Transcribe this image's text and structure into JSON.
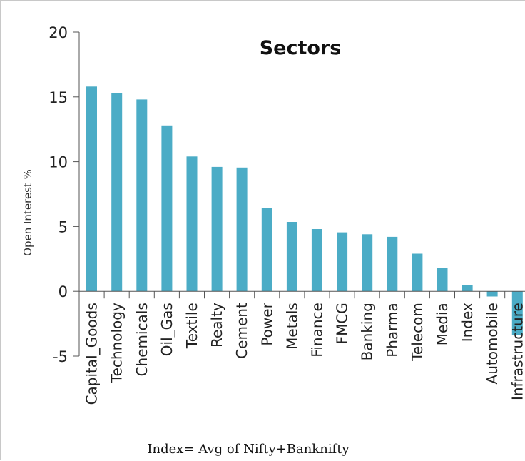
{
  "chart_data": {
    "type": "bar",
    "title": "Sectors",
    "xlabel": "",
    "ylabel": "Open Interest %",
    "ylim": [
      -5,
      20
    ],
    "yticks": [
      -5,
      0,
      5,
      10,
      15,
      20
    ],
    "grid": false,
    "legend": "none",
    "bar_color": "#4BACC6",
    "categories": [
      "Capital_Goods",
      "Technology",
      "Chemicals",
      "Oil_Gas",
      "Textile",
      "Realty",
      "Cement",
      "Power",
      "Metals",
      "Finance",
      "FMCG",
      "Banking",
      "Pharma",
      "Telecom",
      "Media",
      "Index",
      "Automobile",
      "Infrastructure"
    ],
    "values": [
      15.8,
      15.3,
      14.8,
      12.8,
      10.4,
      9.6,
      9.55,
      6.4,
      5.35,
      4.8,
      4.55,
      4.4,
      4.2,
      2.9,
      1.8,
      0.5,
      -0.4,
      -3.4
    ],
    "footnote": "Index= Avg of Nifty+Banknifty"
  }
}
